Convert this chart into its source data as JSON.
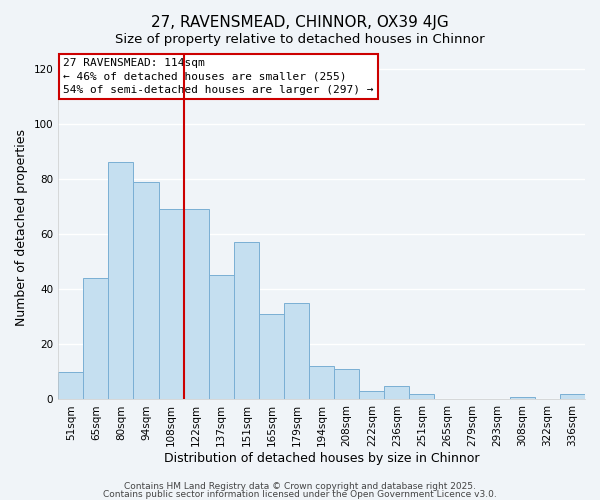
{
  "title": "27, RAVENSMEAD, CHINNOR, OX39 4JG",
  "subtitle": "Size of property relative to detached houses in Chinnor",
  "xlabel": "Distribution of detached houses by size in Chinnor",
  "ylabel": "Number of detached properties",
  "bar_labels": [
    "51sqm",
    "65sqm",
    "80sqm",
    "94sqm",
    "108sqm",
    "122sqm",
    "137sqm",
    "151sqm",
    "165sqm",
    "179sqm",
    "194sqm",
    "208sqm",
    "222sqm",
    "236sqm",
    "251sqm",
    "265sqm",
    "279sqm",
    "293sqm",
    "308sqm",
    "322sqm",
    "336sqm"
  ],
  "bar_values": [
    10,
    44,
    86,
    79,
    69,
    69,
    45,
    57,
    31,
    35,
    12,
    11,
    3,
    5,
    2,
    0,
    0,
    0,
    1,
    0,
    2
  ],
  "bar_color": "#c5dff0",
  "bar_edge_color": "#7aafd4",
  "vline_x_index": 4,
  "vline_color": "#cc0000",
  "ylim": [
    0,
    125
  ],
  "yticks": [
    0,
    20,
    40,
    60,
    80,
    100,
    120
  ],
  "annotation_line1": "27 RAVENSMEAD: 114sqm",
  "annotation_line2": "← 46% of detached houses are smaller (255)",
  "annotation_line3": "54% of semi-detached houses are larger (297) →",
  "annotation_box_color": "#ffffff",
  "annotation_box_edge": "#cc0000",
  "footer1": "Contains HM Land Registry data © Crown copyright and database right 2025.",
  "footer2": "Contains public sector information licensed under the Open Government Licence v3.0.",
  "background_color": "#f0f4f8",
  "grid_color": "#ffffff",
  "title_fontsize": 11,
  "axis_label_fontsize": 9,
  "tick_fontsize": 7.5,
  "footer_fontsize": 6.5,
  "annotation_fontsize": 8
}
